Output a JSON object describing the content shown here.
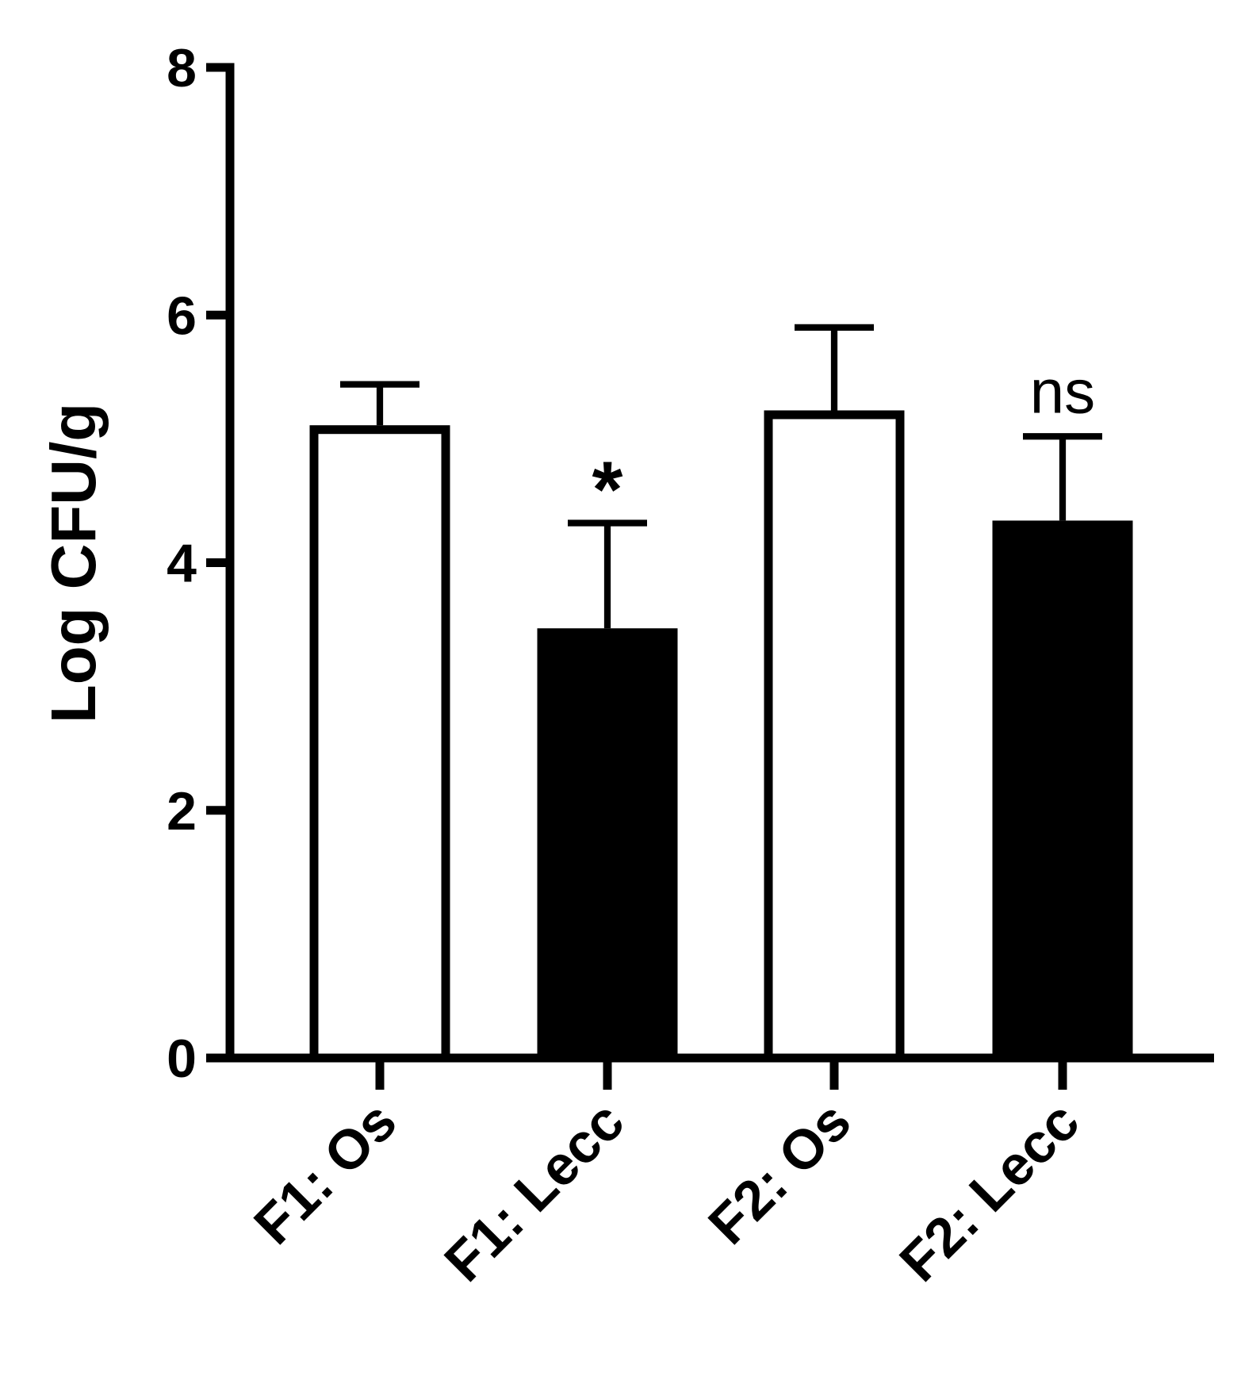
{
  "chart_data": {
    "type": "bar",
    "y_label": "Log CFU/g",
    "categories": [
      "F1: Os",
      "F1: Lecc",
      "F2: Os",
      "F2: Lecc"
    ],
    "values": [
      5.11,
      3.47,
      5.23,
      4.34
    ],
    "errors": [
      0.33,
      0.85,
      0.67,
      0.68
    ],
    "colors": [
      "#ffffff",
      "#000000",
      "#ffffff",
      "#000000"
    ],
    "annotations": [
      null,
      "*",
      null,
      "ns"
    ],
    "ylim": [
      0,
      8
    ],
    "yticks": [
      0,
      2,
      4,
      6,
      8
    ],
    "grid": false
  }
}
